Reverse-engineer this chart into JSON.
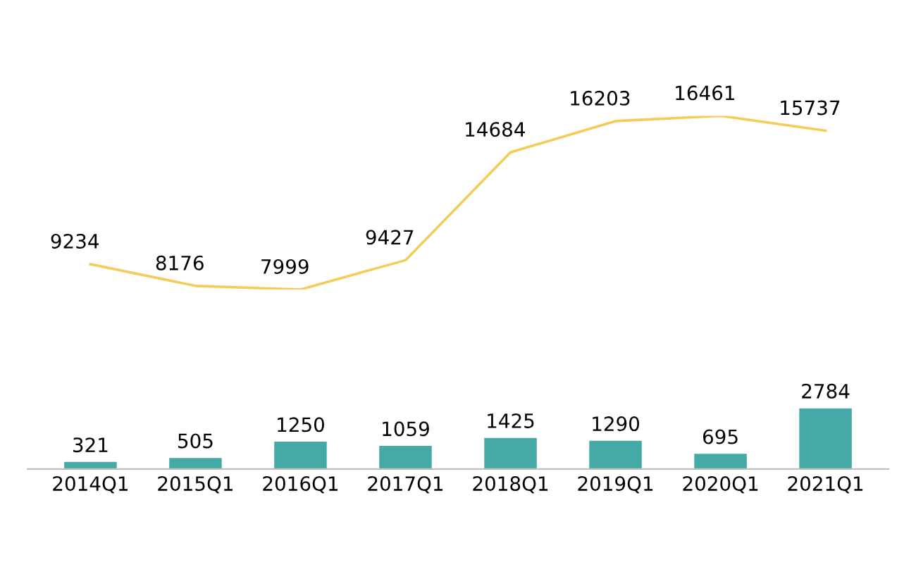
{
  "chart_data": [
    {
      "type": "line",
      "categories": [
        null,
        null,
        null,
        null,
        null,
        null,
        null,
        null
      ],
      "series": [
        {
          "color": "#f2cd5c",
          "values": [
            9234,
            8176,
            7999,
            9427,
            14684,
            16203,
            16461,
            15737
          ]
        }
      ],
      "data_labels": true,
      "marker": "none",
      "line_style": "solid",
      "tick_labels": false
    },
    {
      "type": "bar",
      "categories": [
        "2014Q1",
        "2015Q1",
        "2016Q1",
        "2017Q1",
        "2018Q1",
        "2019Q1",
        "2020Q1",
        "2021Q1"
      ],
      "series": [
        {
          "color": "#45aaa6",
          "values": [
            321,
            505,
            1250,
            1059,
            1425,
            1290,
            695,
            2784
          ]
        }
      ],
      "data_labels": true,
      "tick_labels": "x"
    }
  ]
}
